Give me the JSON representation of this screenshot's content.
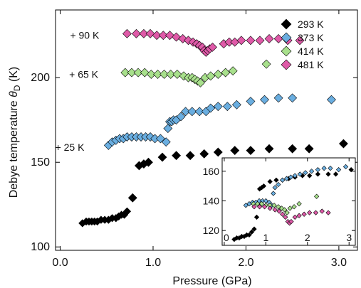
{
  "chart_data": {
    "type": "scatter",
    "xlabel": "Pressure (GPa)",
    "ylabel_main": "Debye temperature ",
    "ylabel_symbol": "θ",
    "ylabel_sub": "D",
    "ylabel_unit": " (K)",
    "xlim": [
      -0.05,
      3.2
    ],
    "ylim": [
      98,
      240
    ],
    "xticks": [
      0.0,
      1.0,
      2.0,
      3.0
    ],
    "xtick_labels": [
      "0.0",
      "1.0",
      "2.0",
      "3.0"
    ],
    "yticks": [
      100,
      150,
      200
    ],
    "ytick_labels": [
      "100",
      "150",
      "200"
    ],
    "legend_position": "top-right",
    "grid": false,
    "offset_labels": [
      {
        "text": "+ 90 K",
        "x": 0.42,
        "y": 225
      },
      {
        "text": "+ 65 K",
        "x": 0.41,
        "y": 202
      },
      {
        "text": "+ 25 K",
        "x": 0.26,
        "y": 159
      }
    ],
    "series": [
      {
        "name": "293 K",
        "color": "#000000",
        "x": [
          0.24,
          0.28,
          0.31,
          0.34,
          0.37,
          0.4,
          0.44,
          0.48,
          0.52,
          0.56,
          0.6,
          0.63,
          0.66,
          0.69,
          0.72,
          0.78,
          0.85,
          0.9,
          0.95,
          1.1,
          1.25,
          1.4,
          1.55,
          1.7,
          1.88,
          2.05,
          2.25,
          2.5,
          2.68,
          3.05
        ],
        "y": [
          114,
          115,
          115,
          115,
          115,
          115,
          116,
          116,
          116,
          117,
          117,
          118,
          119,
          119,
          121,
          129,
          148,
          149,
          150,
          153,
          154,
          154,
          155,
          156,
          157,
          157,
          158,
          158,
          158,
          161
        ]
      },
      {
        "name": "373 K",
        "color": "#6aaee0",
        "x": [
          0.52,
          0.56,
          0.6,
          0.64,
          0.68,
          0.72,
          0.77,
          0.82,
          0.87,
          0.92,
          0.97,
          1.02,
          1.08,
          1.14,
          1.16,
          1.18,
          1.2,
          1.22,
          1.25,
          1.3,
          1.35,
          1.42,
          1.5,
          1.57,
          1.62,
          1.7,
          1.8,
          1.9,
          2.05,
          2.2,
          2.35,
          2.5,
          2.92
        ],
        "y": [
          160,
          162,
          163,
          164,
          164,
          165,
          165,
          165,
          165,
          165,
          165,
          164,
          164,
          162,
          170,
          174,
          174,
          175,
          175,
          177,
          180,
          180,
          180,
          180,
          182,
          183,
          183,
          184,
          186,
          187,
          188,
          188,
          187
        ]
      },
      {
        "name": "414 K",
        "color": "#a8e08c",
        "x": [
          0.7,
          0.77,
          0.84,
          0.91,
          0.98,
          1.05,
          1.12,
          1.19,
          1.26,
          1.33,
          1.38,
          1.42,
          1.45,
          1.48,
          1.51,
          1.56,
          1.62,
          1.7,
          1.78,
          1.86,
          2.22
        ],
        "y": [
          203,
          203,
          203,
          203,
          202,
          202,
          202,
          202,
          202,
          201,
          200,
          200,
          199,
          198,
          197,
          200,
          201,
          202,
          203,
          204,
          208
        ]
      },
      {
        "name": "481 K",
        "color": "#df5aa8",
        "x": [
          0.72,
          0.82,
          0.9,
          0.97,
          1.04,
          1.11,
          1.18,
          1.25,
          1.32,
          1.38,
          1.43,
          1.47,
          1.5,
          1.53,
          1.55,
          1.57,
          1.59,
          1.61,
          1.64,
          1.76,
          1.82,
          1.88,
          1.95,
          2.05,
          2.15,
          2.25,
          2.35,
          2.45,
          2.58
        ],
        "y": [
          226,
          226,
          226,
          226,
          225,
          225,
          225,
          224,
          223,
          222,
          221,
          220,
          219,
          218,
          216,
          215,
          216,
          217,
          218,
          220,
          221,
          221,
          222,
          222,
          222,
          223,
          223,
          222,
          222
        ]
      }
    ],
    "inset": {
      "xlim": [
        -0.05,
        3.15
      ],
      "ylim": [
        110,
        169
      ],
      "xticks": [
        0,
        1,
        2,
        3
      ],
      "xtick_labels": [
        "0",
        "1",
        "2",
        "3"
      ],
      "yticks": [
        120,
        140,
        160
      ],
      "ytick_labels": [
        "120",
        "140",
        "160"
      ],
      "series": [
        {
          "name": "293 K",
          "color": "#000000",
          "x": [
            0.24,
            0.3,
            0.36,
            0.42,
            0.48,
            0.54,
            0.6,
            0.66,
            0.72,
            0.78,
            0.85,
            0.9,
            0.95,
            1.1,
            1.25,
            1.4,
            1.55,
            1.7,
            1.88,
            2.05,
            2.25,
            2.5,
            2.68,
            3.05
          ],
          "y": [
            114,
            115,
            115,
            116,
            116,
            117,
            117,
            119,
            121,
            129,
            148,
            149,
            150,
            153,
            154,
            154,
            155,
            156,
            157,
            157,
            158,
            158,
            158,
            161
          ]
        },
        {
          "name": "373 K",
          "color": "#6aaee0",
          "x": [
            0.52,
            0.6,
            0.68,
            0.76,
            0.84,
            0.92,
            1.0,
            1.08,
            1.14,
            1.18,
            1.22,
            1.3,
            1.4,
            1.5,
            1.6,
            1.7,
            1.82,
            1.95,
            2.1,
            2.25,
            2.4,
            2.55,
            2.75,
            2.92
          ],
          "y": [
            137,
            138,
            139,
            139,
            140,
            140,
            140,
            139,
            137,
            145,
            149,
            151,
            154,
            155,
            156,
            157,
            158,
            159,
            160,
            161,
            162,
            162,
            161,
            163
          ]
        },
        {
          "name": "414 K",
          "color": "#a8e08c",
          "x": [
            0.7,
            0.8,
            0.9,
            1.0,
            1.1,
            1.2,
            1.3,
            1.38,
            1.45,
            1.51,
            1.58,
            1.68,
            1.8,
            2.22
          ],
          "y": [
            138,
            138,
            138,
            137,
            137,
            137,
            136,
            135,
            134,
            132,
            135,
            136,
            138,
            143
          ]
        },
        {
          "name": "481 K",
          "color": "#df5aa8",
          "x": [
            0.72,
            0.85,
            0.97,
            1.1,
            1.22,
            1.32,
            1.4,
            1.47,
            1.53,
            1.57,
            1.61,
            1.7,
            1.8,
            1.92,
            2.05,
            2.2,
            2.35,
            2.5
          ],
          "y": [
            136,
            136,
            136,
            135,
            134,
            133,
            131,
            129,
            126,
            125,
            126,
            129,
            130,
            131,
            132,
            132,
            133,
            132
          ]
        }
      ]
    }
  }
}
